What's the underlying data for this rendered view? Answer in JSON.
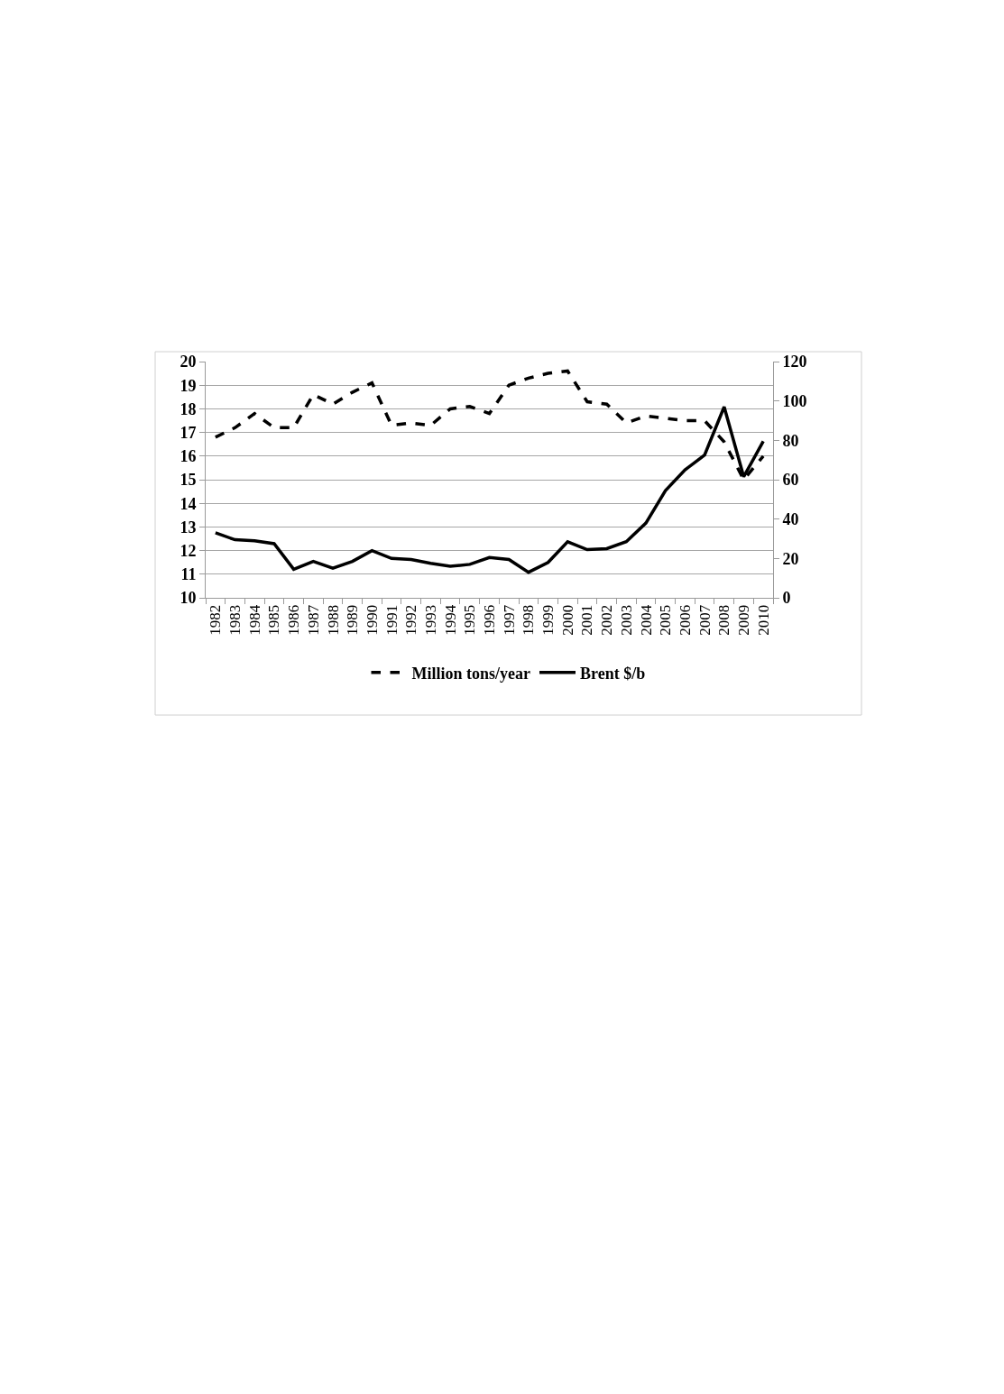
{
  "chart_data": {
    "type": "line",
    "categories": [
      "1982",
      "1983",
      "1984",
      "1985",
      "1986",
      "1987",
      "1988",
      "1989",
      "1990",
      "1991",
      "1992",
      "1993",
      "1994",
      "1995",
      "1996",
      "1997",
      "1998",
      "1999",
      "2000",
      "2001",
      "2002",
      "2003",
      "2004",
      "2005",
      "2006",
      "2007",
      "2008",
      "2009",
      "2010"
    ],
    "series": [
      {
        "name": "Million tons/year",
        "color": "#000000",
        "line_style": "dashed",
        "values": [
          16.8,
          17.2,
          17.8,
          17.2,
          17.2,
          18.6,
          18.2,
          18.7,
          19.1,
          17.3,
          17.4,
          17.3,
          18.0,
          18.1,
          17.8,
          19.0,
          19.3,
          19.5,
          19.6,
          18.3,
          18.2,
          17.4,
          17.7,
          17.6,
          17.5,
          17.5,
          16.6,
          15.0,
          16.0
        ]
      },
      {
        "name": "Brent $/b",
        "color": "#000000",
        "line_style": "solid",
        "axis": "y2",
        "values": [
          33,
          29.5,
          29,
          27.5,
          14.5,
          18.5,
          15,
          18.5,
          24,
          20,
          19.5,
          17.5,
          16,
          17,
          20.5,
          19.5,
          13,
          18,
          28.5,
          24.5,
          25,
          28.5,
          38,
          54.5,
          65,
          72.5,
          97,
          61.5,
          79.5
        ]
      }
    ],
    "ylim": [
      10,
      20
    ],
    "yticks": [
      10,
      11,
      12,
      13,
      14,
      15,
      16,
      17,
      18,
      19,
      20
    ],
    "y2lim": [
      0,
      120
    ],
    "y2ticks": [
      0,
      20,
      40,
      60,
      80,
      100,
      120
    ],
    "grid": "y",
    "legend": "bottom"
  }
}
